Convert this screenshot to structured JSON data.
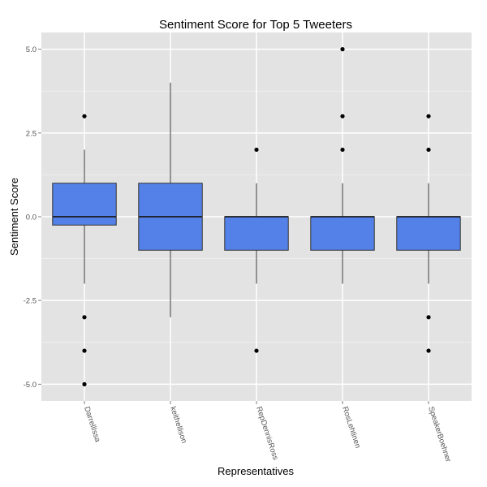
{
  "chart_data": {
    "type": "boxplot",
    "title": "Sentiment Score for Top 5 Tweeters",
    "xlabel": "Representatives",
    "ylabel": "Sentiment Score",
    "ylim": [
      -5.5,
      5.5
    ],
    "yticks": [
      -5.0,
      -2.5,
      0.0,
      2.5,
      5.0
    ],
    "ytick_labels": [
      "-5.0",
      "-2.5",
      "0.0",
      "2.5",
      "5.0"
    ],
    "grid": true,
    "box_fill": "#5381E8",
    "panel_background": "#E3E3E3",
    "categories": [
      "DarrellIssa",
      "keithellison",
      "RepDennisRoss",
      "RosLehtinen",
      "SpeakerBoehner"
    ],
    "boxes": [
      {
        "q1": -0.25,
        "median": 0,
        "q3": 1,
        "whisker_low": -2,
        "whisker_high": 2,
        "outliers": [
          3,
          -3,
          -4,
          -5
        ]
      },
      {
        "q1": -1,
        "median": 0,
        "q3": 1,
        "whisker_low": -3,
        "whisker_high": 4,
        "outliers": []
      },
      {
        "q1": -1,
        "median": 0,
        "q3": 0,
        "whisker_low": -2,
        "whisker_high": 1,
        "outliers": [
          2,
          -4
        ]
      },
      {
        "q1": -1,
        "median": 0,
        "q3": 0,
        "whisker_low": -2,
        "whisker_high": 1,
        "outliers": [
          5,
          3,
          2
        ]
      },
      {
        "q1": -1,
        "median": 0,
        "q3": 0,
        "whisker_low": -2,
        "whisker_high": 1,
        "outliers": [
          3,
          2,
          -3,
          -4
        ]
      }
    ]
  }
}
